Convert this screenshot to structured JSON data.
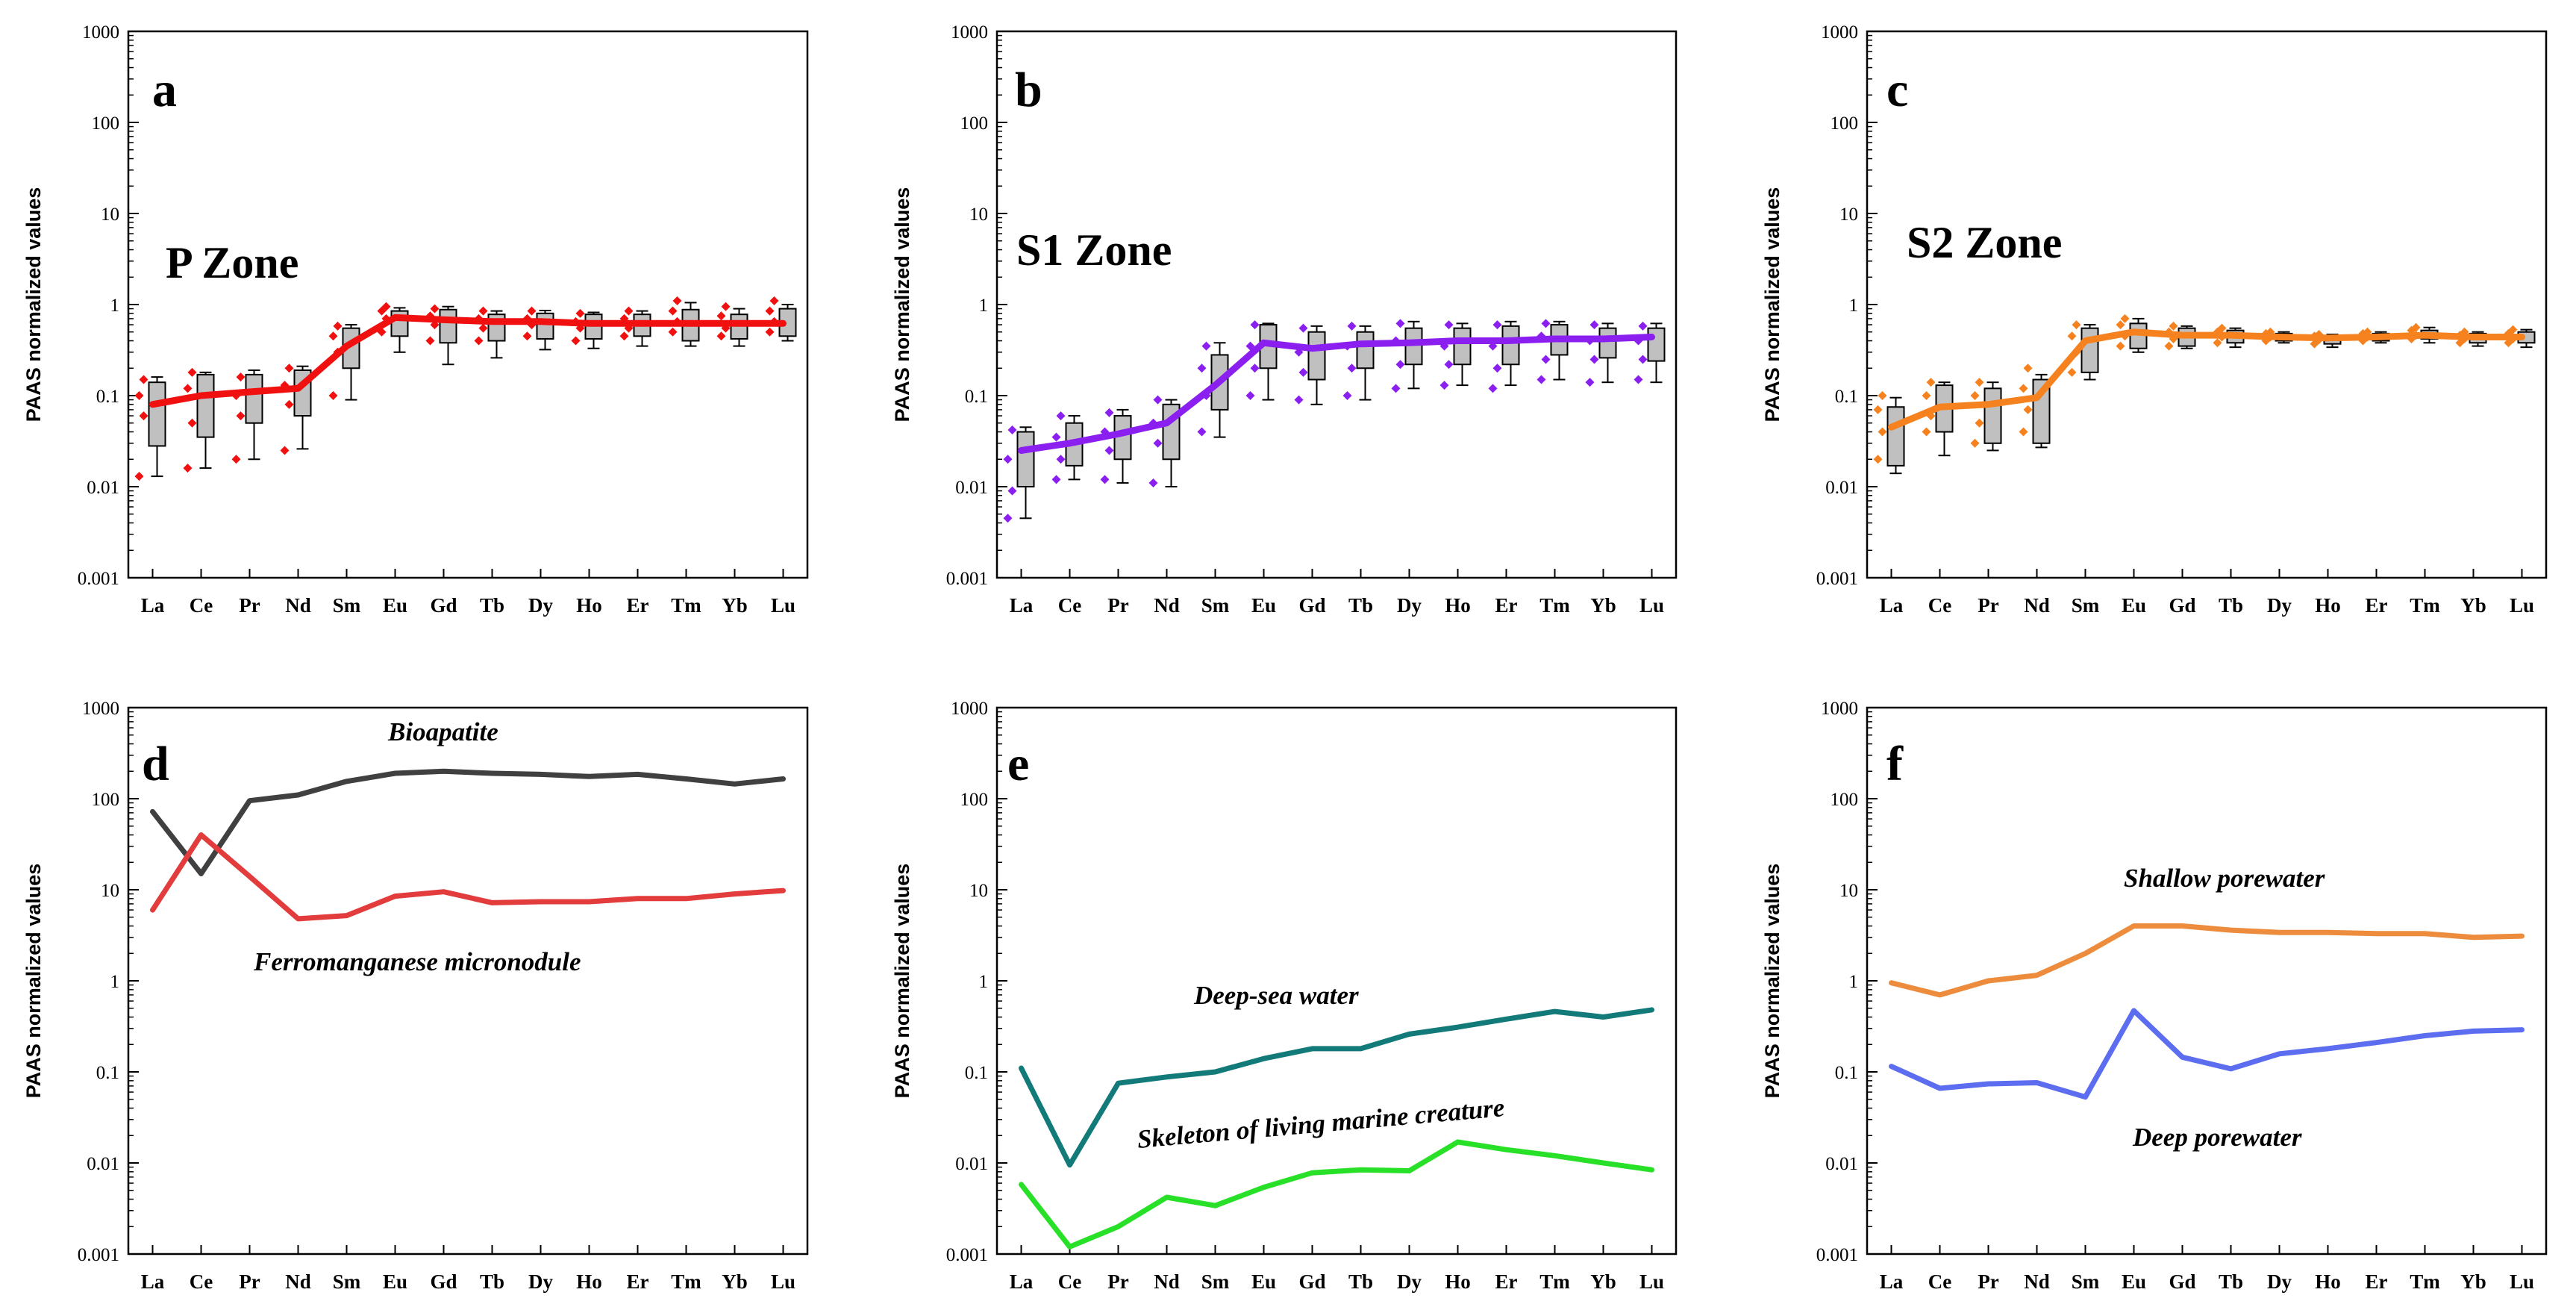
{
  "figure": {
    "ylabel": "PAAS normalized values",
    "y_ticks": [
      "0.001",
      "0.01",
      "0.1",
      "1",
      "10",
      "100",
      "1000"
    ],
    "ylim": [
      0.001,
      1000
    ],
    "categories": [
      "La",
      "Ce",
      "Pr",
      "Nd",
      "Sm",
      "Eu",
      "Gd",
      "Tb",
      "Dy",
      "Ho",
      "Er",
      "Tm",
      "Yb",
      "Lu"
    ]
  },
  "chart_data": [
    {
      "type": "box",
      "letter": "a",
      "title": "P Zone",
      "color": "#f01010",
      "median_line": [
        0.08,
        0.1,
        0.11,
        0.12,
        0.35,
        0.72,
        0.68,
        0.65,
        0.65,
        0.62,
        0.62,
        0.62,
        0.62,
        0.62
      ],
      "boxes": [
        {
          "min": 0.013,
          "q1": 0.028,
          "q3": 0.14,
          "max": 0.16
        },
        {
          "min": 0.016,
          "q1": 0.035,
          "q3": 0.17,
          "max": 0.18
        },
        {
          "min": 0.02,
          "q1": 0.05,
          "q3": 0.17,
          "max": 0.19
        },
        {
          "min": 0.026,
          "q1": 0.06,
          "q3": 0.19,
          "max": 0.21
        },
        {
          "min": 0.09,
          "q1": 0.2,
          "q3": 0.55,
          "max": 0.6
        },
        {
          "min": 0.3,
          "q1": 0.45,
          "q3": 0.85,
          "max": 0.92
        },
        {
          "min": 0.22,
          "q1": 0.38,
          "q3": 0.88,
          "max": 0.95
        },
        {
          "min": 0.26,
          "q1": 0.4,
          "q3": 0.78,
          "max": 0.85
        },
        {
          "min": 0.32,
          "q1": 0.42,
          "q3": 0.8,
          "max": 0.86
        },
        {
          "min": 0.33,
          "q1": 0.42,
          "q3": 0.78,
          "max": 0.82
        },
        {
          "min": 0.35,
          "q1": 0.45,
          "q3": 0.78,
          "max": 0.85
        },
        {
          "min": 0.35,
          "q1": 0.4,
          "q3": 0.88,
          "max": 1.05
        },
        {
          "min": 0.35,
          "q1": 0.42,
          "q3": 0.78,
          "max": 0.9
        },
        {
          "min": 0.4,
          "q1": 0.45,
          "q3": 0.9,
          "max": 1.0
        }
      ],
      "points": [
        [
          0.013,
          0.06,
          0.1,
          0.15
        ],
        [
          0.016,
          0.05,
          0.12,
          0.18
        ],
        [
          0.02,
          0.06,
          0.1,
          0.16
        ],
        [
          0.025,
          0.08,
          0.13,
          0.2
        ],
        [
          0.1,
          0.3,
          0.45,
          0.58
        ],
        [
          0.5,
          0.7,
          0.85,
          0.95
        ],
        [
          0.4,
          0.6,
          0.75,
          0.9
        ],
        [
          0.4,
          0.55,
          0.7,
          0.85
        ],
        [
          0.45,
          0.6,
          0.7,
          0.85
        ],
        [
          0.4,
          0.55,
          0.65,
          0.8
        ],
        [
          0.45,
          0.55,
          0.7,
          0.85
        ],
        [
          0.5,
          0.65,
          0.85,
          1.1
        ],
        [
          0.45,
          0.55,
          0.75,
          0.95
        ],
        [
          0.5,
          0.65,
          0.85,
          1.1
        ]
      ]
    },
    {
      "type": "box",
      "letter": "b",
      "title": "S1 Zone",
      "color": "#8a1ff0",
      "median_line": [
        0.025,
        0.03,
        0.038,
        0.05,
        0.13,
        0.38,
        0.33,
        0.37,
        0.38,
        0.4,
        0.4,
        0.42,
        0.42,
        0.44
      ],
      "boxes": [
        {
          "min": 0.0045,
          "q1": 0.01,
          "q3": 0.04,
          "max": 0.045
        },
        {
          "min": 0.012,
          "q1": 0.017,
          "q3": 0.05,
          "max": 0.06
        },
        {
          "min": 0.011,
          "q1": 0.02,
          "q3": 0.06,
          "max": 0.07
        },
        {
          "min": 0.01,
          "q1": 0.02,
          "q3": 0.08,
          "max": 0.09
        },
        {
          "min": 0.035,
          "q1": 0.07,
          "q3": 0.28,
          "max": 0.38
        },
        {
          "min": 0.09,
          "q1": 0.2,
          "q3": 0.6,
          "max": 0.62
        },
        {
          "min": 0.08,
          "q1": 0.15,
          "q3": 0.5,
          "max": 0.58
        },
        {
          "min": 0.09,
          "q1": 0.2,
          "q3": 0.5,
          "max": 0.58
        },
        {
          "min": 0.12,
          "q1": 0.22,
          "q3": 0.55,
          "max": 0.65
        },
        {
          "min": 0.13,
          "q1": 0.22,
          "q3": 0.55,
          "max": 0.62
        },
        {
          "min": 0.13,
          "q1": 0.22,
          "q3": 0.58,
          "max": 0.65
        },
        {
          "min": 0.15,
          "q1": 0.28,
          "q3": 0.6,
          "max": 0.65
        },
        {
          "min": 0.14,
          "q1": 0.26,
          "q3": 0.55,
          "max": 0.62
        },
        {
          "min": 0.14,
          "q1": 0.24,
          "q3": 0.55,
          "max": 0.62
        }
      ],
      "points": [
        [
          0.0045,
          0.009,
          0.02,
          0.042
        ],
        [
          0.012,
          0.02,
          0.035,
          0.06
        ],
        [
          0.012,
          0.025,
          0.04,
          0.065
        ],
        [
          0.011,
          0.03,
          0.05,
          0.09
        ],
        [
          0.04,
          0.1,
          0.2,
          0.35
        ],
        [
          0.1,
          0.2,
          0.35,
          0.6
        ],
        [
          0.09,
          0.18,
          0.3,
          0.55
        ],
        [
          0.1,
          0.2,
          0.35,
          0.58
        ],
        [
          0.12,
          0.22,
          0.4,
          0.62
        ],
        [
          0.13,
          0.22,
          0.35,
          0.6
        ],
        [
          0.12,
          0.2,
          0.35,
          0.6
        ],
        [
          0.15,
          0.25,
          0.45,
          0.62
        ],
        [
          0.14,
          0.25,
          0.4,
          0.6
        ],
        [
          0.15,
          0.25,
          0.4,
          0.58
        ]
      ]
    },
    {
      "type": "box",
      "letter": "c",
      "title": "S2 Zone",
      "color": "#f5821f",
      "median_line": [
        0.045,
        0.075,
        0.08,
        0.095,
        0.4,
        0.5,
        0.46,
        0.46,
        0.44,
        0.43,
        0.44,
        0.46,
        0.44,
        0.44
      ],
      "boxes": [
        {
          "min": 0.014,
          "q1": 0.017,
          "q3": 0.075,
          "max": 0.095
        },
        {
          "min": 0.022,
          "q1": 0.04,
          "q3": 0.13,
          "max": 0.14
        },
        {
          "min": 0.025,
          "q1": 0.03,
          "q3": 0.12,
          "max": 0.14
        },
        {
          "min": 0.027,
          "q1": 0.03,
          "q3": 0.15,
          "max": 0.17
        },
        {
          "min": 0.15,
          "q1": 0.18,
          "q3": 0.55,
          "max": 0.6
        },
        {
          "min": 0.3,
          "q1": 0.33,
          "q3": 0.62,
          "max": 0.7
        },
        {
          "min": 0.33,
          "q1": 0.35,
          "q3": 0.55,
          "max": 0.58
        },
        {
          "min": 0.34,
          "q1": 0.38,
          "q3": 0.52,
          "max": 0.55
        },
        {
          "min": 0.38,
          "q1": 0.4,
          "q3": 0.48,
          "max": 0.5
        },
        {
          "min": 0.34,
          "q1": 0.37,
          "q3": 0.45,
          "max": 0.47
        },
        {
          "min": 0.38,
          "q1": 0.4,
          "q3": 0.48,
          "max": 0.5
        },
        {
          "min": 0.38,
          "q1": 0.42,
          "q3": 0.52,
          "max": 0.56
        },
        {
          "min": 0.35,
          "q1": 0.38,
          "q3": 0.48,
          "max": 0.5
        },
        {
          "min": 0.34,
          "q1": 0.38,
          "q3": 0.5,
          "max": 0.53
        }
      ],
      "points": [
        [
          0.02,
          0.04,
          0.07,
          0.1
        ],
        [
          0.04,
          0.06,
          0.1,
          0.14
        ],
        [
          0.03,
          0.05,
          0.1,
          0.14
        ],
        [
          0.04,
          0.07,
          0.12,
          0.2
        ],
        [
          0.18,
          0.3,
          0.45,
          0.6
        ],
        [
          0.35,
          0.45,
          0.6,
          0.7
        ],
        [
          0.35,
          0.42,
          0.5,
          0.58
        ],
        [
          0.38,
          0.44,
          0.5,
          0.55
        ],
        [
          0.4,
          0.44,
          0.48,
          0.5
        ],
        [
          0.37,
          0.41,
          0.45,
          0.47
        ],
        [
          0.4,
          0.44,
          0.48,
          0.5
        ],
        [
          0.42,
          0.46,
          0.52,
          0.56
        ],
        [
          0.38,
          0.42,
          0.46,
          0.5
        ],
        [
          0.38,
          0.42,
          0.48,
          0.53
        ]
      ]
    },
    {
      "type": "line",
      "letter": "d",
      "series": [
        {
          "name": "Bioapatite",
          "color": "#404040",
          "values": [
            72,
            15,
            95,
            110,
            155,
            190,
            200,
            190,
            185,
            175,
            185,
            165,
            145,
            165
          ]
        },
        {
          "name": "Ferromanganese micronodule",
          "color": "#e23c3c",
          "values": [
            6,
            40,
            14,
            4.8,
            5.2,
            8.5,
            9.5,
            7.2,
            7.4,
            7.4,
            8,
            8,
            9,
            9.8
          ]
        }
      ]
    },
    {
      "type": "line",
      "letter": "e",
      "series": [
        {
          "name": "Deep-sea water",
          "color": "#127a78",
          "values": [
            0.11,
            0.0095,
            0.075,
            0.088,
            0.1,
            0.14,
            0.18,
            0.18,
            0.26,
            0.31,
            0.38,
            0.46,
            0.4,
            0.48
          ]
        },
        {
          "name": "Skeleton of living marine creature",
          "color": "#27e027",
          "values": [
            0.0058,
            0.0012,
            0.002,
            0.0042,
            0.0034,
            0.0054,
            0.0078,
            0.0084,
            0.0082,
            0.017,
            0.014,
            0.012,
            0.01,
            0.0084
          ]
        }
      ]
    },
    {
      "type": "line",
      "letter": "f",
      "series": [
        {
          "name": "Shallow porewater",
          "color": "#ec8c3c",
          "values": [
            0.95,
            0.7,
            1.0,
            1.15,
            2.0,
            4.0,
            4.0,
            3.6,
            3.4,
            3.4,
            3.3,
            3.3,
            3.0,
            3.1
          ]
        },
        {
          "name": "Deep porewater",
          "color": "#5c6df0",
          "values": [
            0.115,
            0.066,
            0.074,
            0.076,
            0.053,
            0.47,
            0.145,
            0.108,
            0.158,
            0.18,
            0.21,
            0.25,
            0.28,
            0.29
          ]
        }
      ]
    }
  ]
}
